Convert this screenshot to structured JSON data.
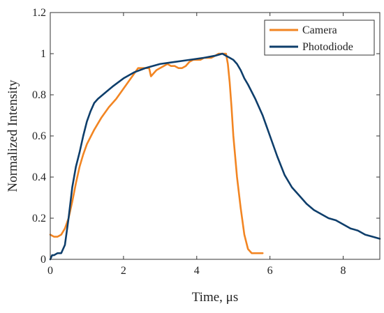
{
  "chart_data": {
    "type": "line",
    "title": "",
    "xlabel": "Time, μs",
    "ylabel": "Normalized Intensity",
    "xlim": [
      0,
      9
    ],
    "ylim": [
      0,
      1.2
    ],
    "xticks": [
      0,
      2,
      4,
      6,
      8
    ],
    "xtick_labels": [
      "0",
      "2",
      "4",
      "6",
      "8"
    ],
    "yticks": [
      0,
      0.2,
      0.4,
      0.6,
      0.8,
      1,
      1.2
    ],
    "ytick_labels": [
      "0",
      "0.2",
      "0.4",
      "0.6",
      "0.8",
      "1",
      "1.2"
    ],
    "grid": false,
    "legend": {
      "placement": "top-right",
      "entries": [
        "Camera",
        "Photodiode"
      ]
    },
    "series": [
      {
        "name": "Camera",
        "color": "#F28522",
        "x": [
          0,
          0.1,
          0.2,
          0.3,
          0.4,
          0.5,
          0.6,
          0.7,
          0.8,
          0.9,
          1.0,
          1.2,
          1.4,
          1.6,
          1.8,
          2.0,
          2.2,
          2.4,
          2.5,
          2.6,
          2.7,
          2.75,
          2.8,
          2.9,
          3.0,
          3.1,
          3.2,
          3.3,
          3.4,
          3.5,
          3.6,
          3.7,
          3.8,
          3.9,
          4.0,
          4.1,
          4.2,
          4.3,
          4.4,
          4.5,
          4.6,
          4.7,
          4.8,
          4.85,
          4.9,
          4.95,
          5.0,
          5.1,
          5.2,
          5.3,
          5.4,
          5.5,
          5.6,
          5.7,
          5.8
        ],
        "y": [
          0.12,
          0.11,
          0.11,
          0.12,
          0.15,
          0.2,
          0.28,
          0.37,
          0.45,
          0.51,
          0.56,
          0.63,
          0.69,
          0.74,
          0.78,
          0.83,
          0.88,
          0.93,
          0.93,
          0.93,
          0.93,
          0.89,
          0.9,
          0.92,
          0.93,
          0.94,
          0.95,
          0.94,
          0.94,
          0.93,
          0.93,
          0.94,
          0.96,
          0.97,
          0.97,
          0.97,
          0.98,
          0.98,
          0.98,
          0.99,
          1.0,
          1.0,
          1.0,
          0.95,
          0.86,
          0.74,
          0.6,
          0.4,
          0.25,
          0.12,
          0.05,
          0.03,
          0.03,
          0.03,
          0.03
        ]
      },
      {
        "name": "Photodiode",
        "color": "#0E3E6B",
        "x": [
          0,
          0.05,
          0.1,
          0.2,
          0.3,
          0.4,
          0.5,
          0.6,
          0.7,
          0.8,
          0.9,
          1.0,
          1.1,
          1.2,
          1.3,
          1.5,
          1.7,
          2.0,
          2.3,
          2.6,
          3.0,
          3.4,
          3.8,
          4.2,
          4.5,
          4.7,
          4.8,
          4.9,
          5.0,
          5.1,
          5.2,
          5.3,
          5.4,
          5.6,
          5.8,
          6.0,
          6.2,
          6.4,
          6.6,
          6.8,
          7.0,
          7.2,
          7.4,
          7.6,
          7.8,
          8.0,
          8.2,
          8.4,
          8.6,
          8.8,
          9.0
        ],
        "y": [
          0.0,
          0.02,
          0.02,
          0.03,
          0.03,
          0.07,
          0.2,
          0.35,
          0.45,
          0.52,
          0.6,
          0.67,
          0.72,
          0.76,
          0.78,
          0.81,
          0.84,
          0.88,
          0.91,
          0.93,
          0.95,
          0.96,
          0.97,
          0.98,
          0.99,
          1.0,
          0.99,
          0.98,
          0.97,
          0.95,
          0.92,
          0.88,
          0.85,
          0.78,
          0.7,
          0.6,
          0.5,
          0.41,
          0.35,
          0.31,
          0.27,
          0.24,
          0.22,
          0.2,
          0.19,
          0.17,
          0.15,
          0.14,
          0.12,
          0.11,
          0.1
        ]
      }
    ]
  }
}
